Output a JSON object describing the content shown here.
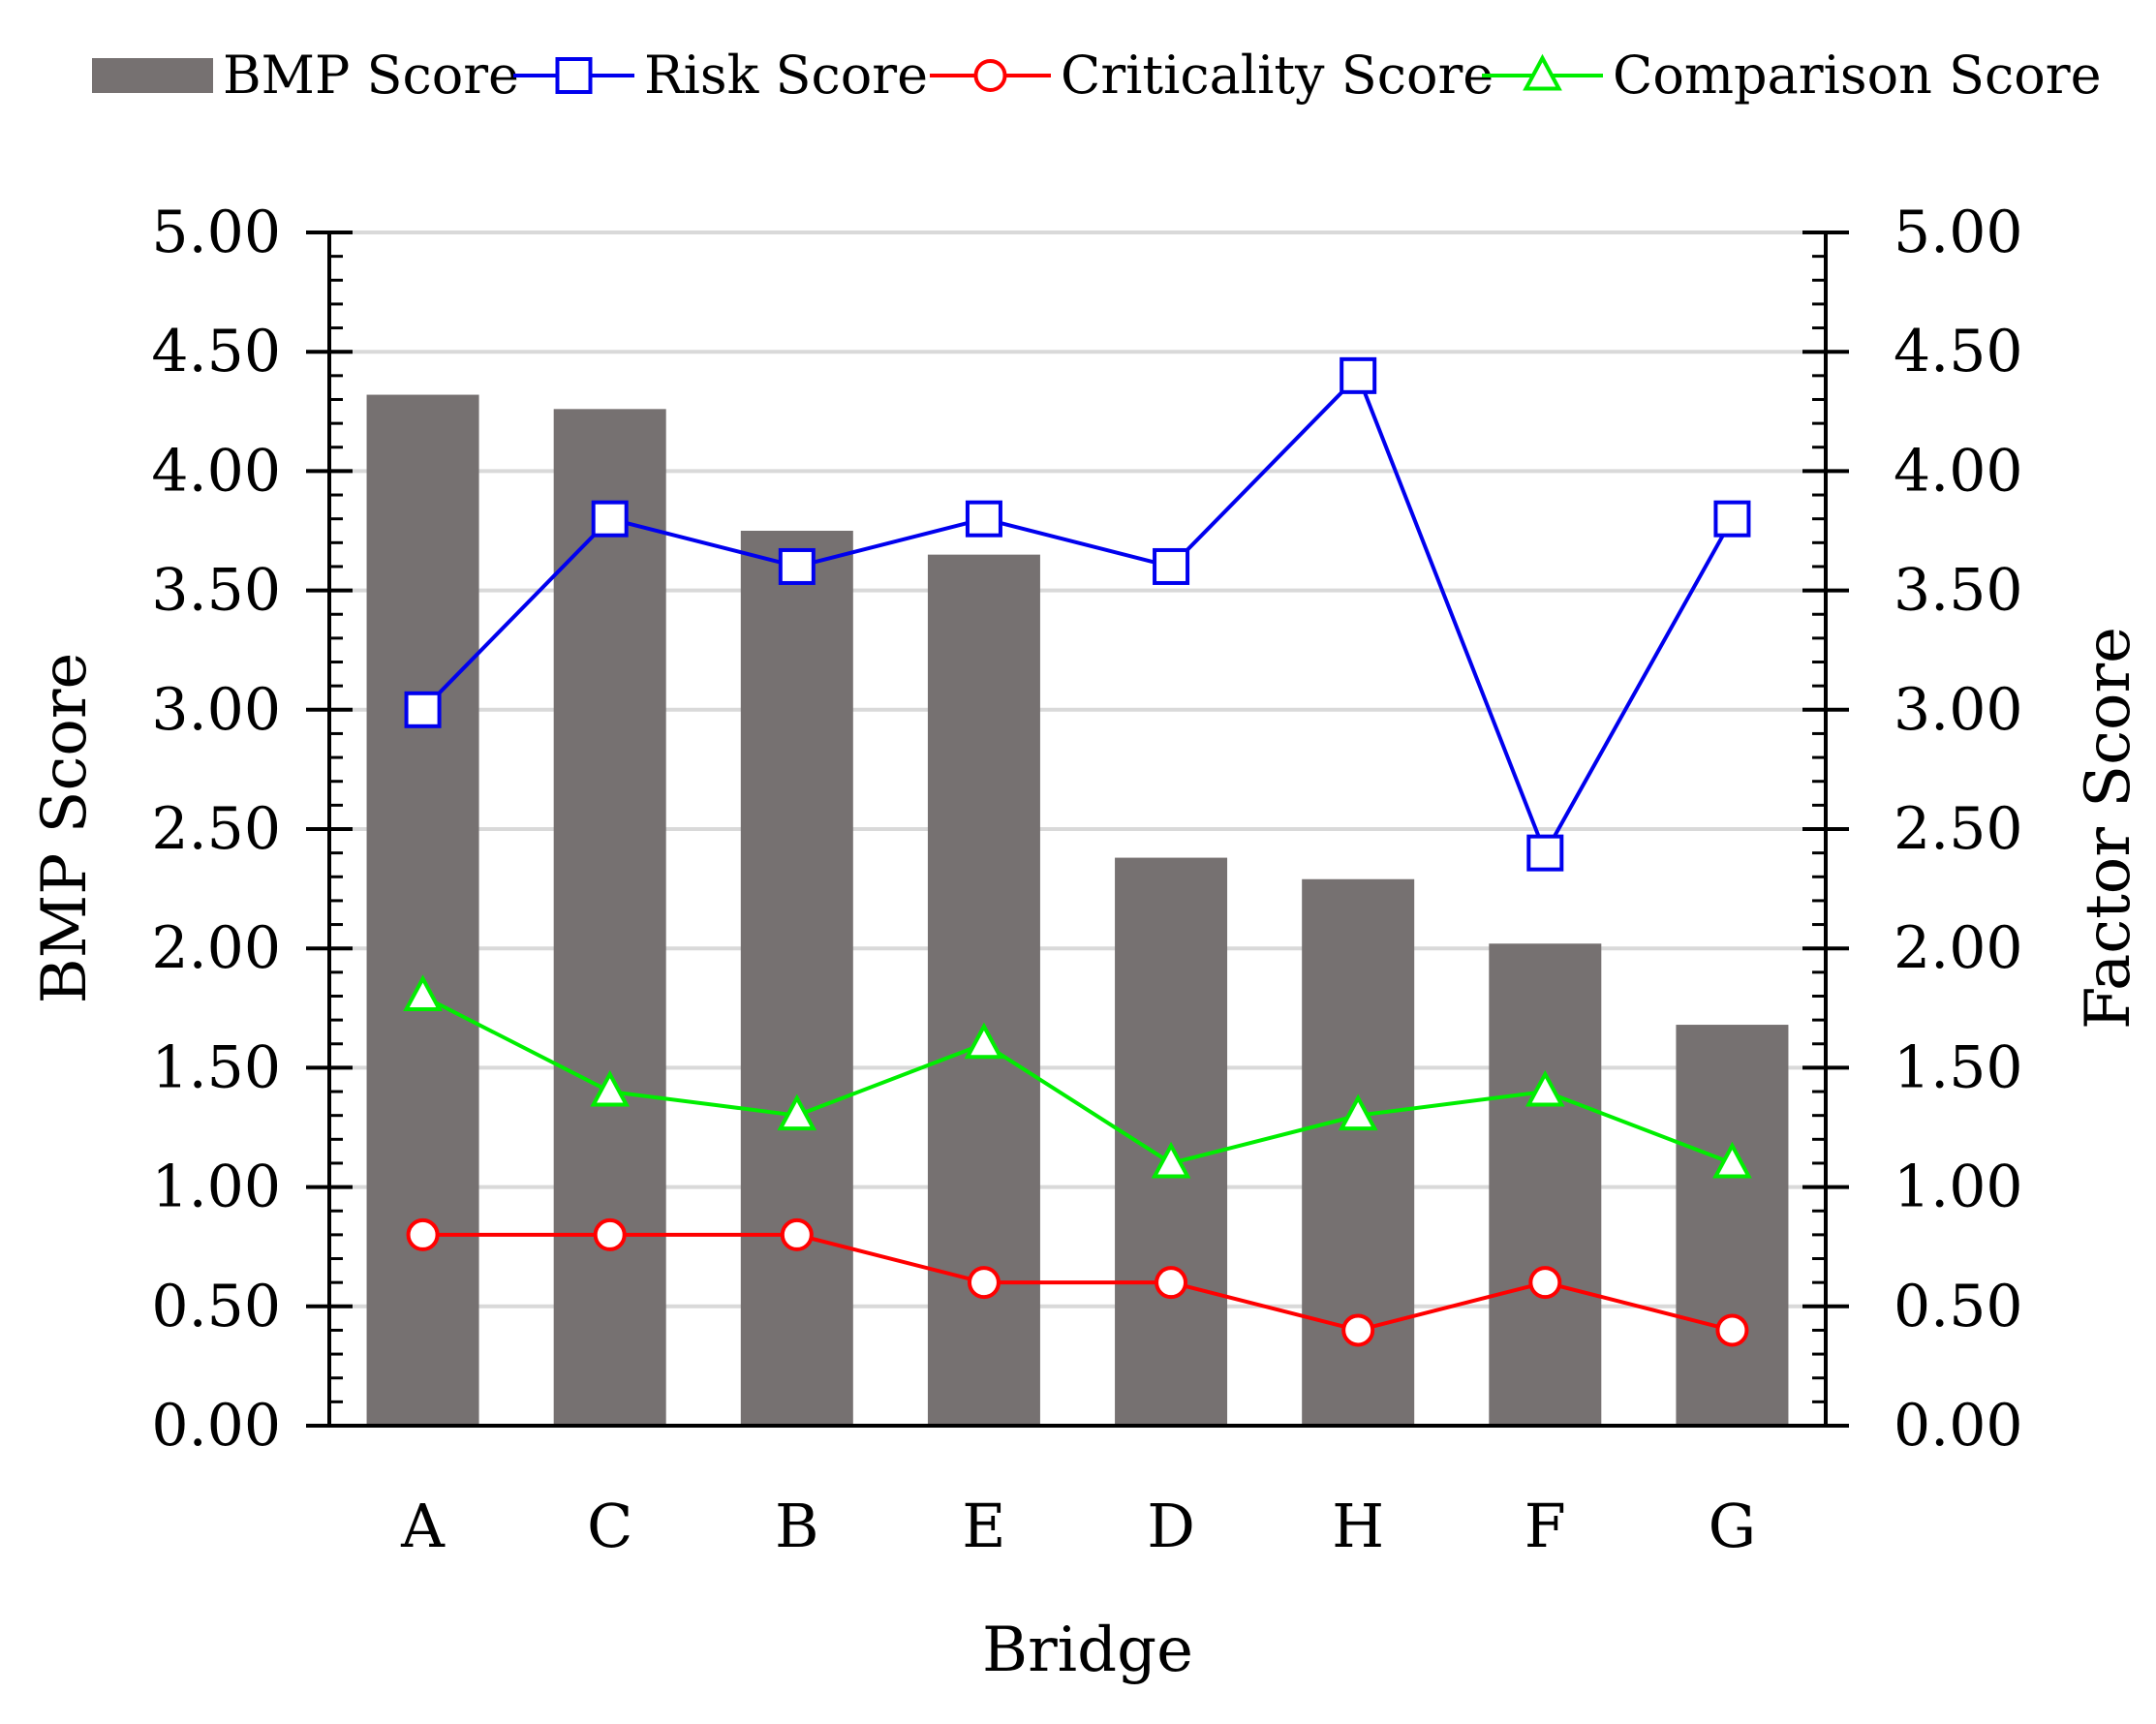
{
  "chart_data": {
    "type": "bar",
    "title": "",
    "categories": [
      "A",
      "C",
      "B",
      "E",
      "D",
      "H",
      "F",
      "G"
    ],
    "xlabel": "Bridge",
    "ylabel": "BMP Score",
    "y2label": "Factor Score",
    "ylim": [
      0,
      5
    ],
    "y2lim": [
      0,
      5
    ],
    "yticks": [
      "0.00",
      "0.50",
      "1.00",
      "1.50",
      "2.00",
      "2.50",
      "3.00",
      "3.50",
      "4.00",
      "4.50",
      "5.00"
    ],
    "y2ticks": [
      "0.00",
      "0.50",
      "1.00",
      "1.50",
      "2.00",
      "2.50",
      "3.00",
      "3.50",
      "4.00",
      "4.50",
      "5.00"
    ],
    "grid": true,
    "legend_position": "top",
    "series": [
      {
        "name": "BMP Score",
        "kind": "bar",
        "axis": "left",
        "color": "#767171",
        "values": [
          4.32,
          4.26,
          3.75,
          3.65,
          2.38,
          2.29,
          2.02,
          1.68
        ]
      },
      {
        "name": "Risk Score",
        "kind": "line",
        "marker": "square",
        "axis": "right",
        "color": "#0000EE",
        "values": [
          3.0,
          3.8,
          3.6,
          3.8,
          3.6,
          4.4,
          2.4,
          3.8
        ]
      },
      {
        "name": "Criticality Score",
        "kind": "line",
        "marker": "circle",
        "axis": "right",
        "color": "#FF0000",
        "values": [
          0.8,
          0.8,
          0.8,
          0.6,
          0.6,
          0.4,
          0.6,
          0.4
        ]
      },
      {
        "name": "Comparison Score",
        "kind": "line",
        "marker": "triangle",
        "axis": "right",
        "color": "#00EE00",
        "values": [
          1.8,
          1.4,
          1.3,
          1.6,
          1.1,
          1.3,
          1.4,
          1.1
        ]
      }
    ]
  }
}
